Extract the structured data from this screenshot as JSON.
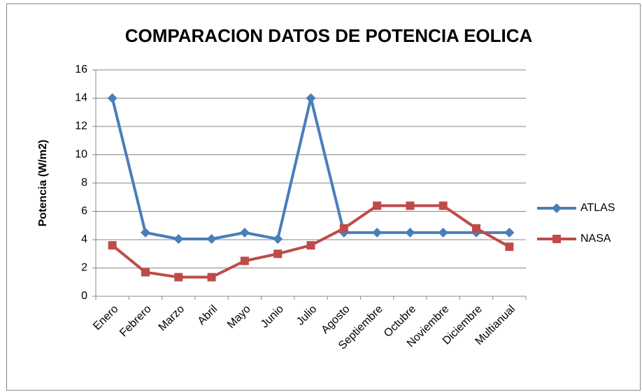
{
  "chart_data": {
    "type": "line",
    "title": "COMPARACION DATOS DE POTENCIA EOLICA",
    "y_label": "Potencia (W/m2)",
    "categories": [
      "Enero",
      "Febrero",
      "Marzo",
      "Abril",
      "Mayo",
      "Junio",
      "Julio",
      "Agosto",
      "Septiembre",
      "Octubre",
      "Noviembre",
      "Diciembre",
      "Multianual"
    ],
    "series": [
      {
        "name": "ATLAS",
        "color": "#4a7ebb",
        "marker": "diamond",
        "values": [
          14,
          4.5,
          4.05,
          4.05,
          4.5,
          4.05,
          14,
          4.5,
          4.5,
          4.5,
          4.5,
          4.5,
          4.5
        ]
      },
      {
        "name": "NASA",
        "color": "#be4b48",
        "marker": "square",
        "values": [
          3.6,
          1.7,
          1.35,
          1.35,
          2.5,
          3.0,
          3.6,
          4.8,
          6.4,
          6.4,
          6.4,
          4.8,
          3.5
        ]
      }
    ],
    "ylim": [
      0,
      16
    ],
    "yticks": [
      0,
      2,
      4,
      6,
      8,
      10,
      12,
      14,
      16
    ],
    "grid": true,
    "legend": "right"
  }
}
